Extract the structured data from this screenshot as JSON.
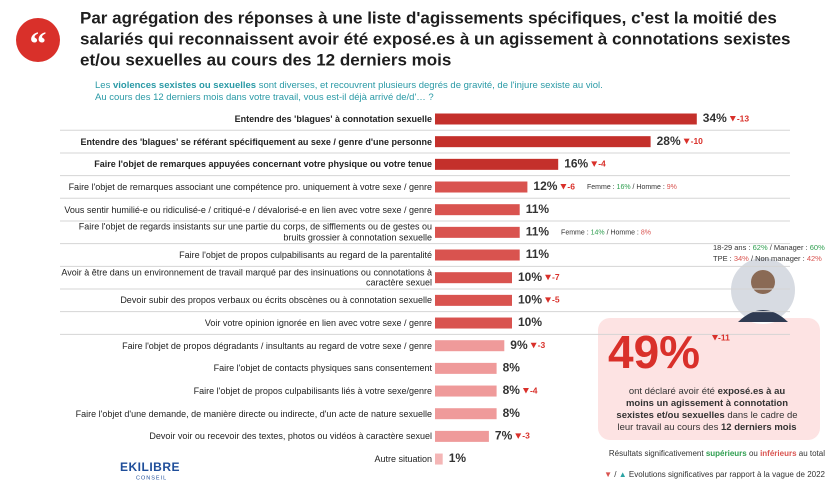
{
  "header": {
    "title_lines": [
      "Par agrégation des réponses à une liste d'agissements spécifiques, c'est la moitié des",
      "salariés qui reconnaissent avoir été exposé.es à un agissement à connotations sexistes",
      "et/ou sexuelles au cours des 12 derniers mois"
    ],
    "subtitle_lines": [
      [
        {
          "text": "Les "
        },
        {
          "text": "violences sexistes ou sexuelles",
          "bold": true
        },
        {
          "text": " sont diverses, et recouvrent plusieurs degrés de gravité, de l'injure sexiste au viol."
        }
      ],
      [
        {
          "text": "Au cours des 12 derniers mois dans votre travail, vous est-il déjà arrivé de/d'… ?"
        }
      ]
    ]
  },
  "chart_data": {
    "type": "bar",
    "orientation": "horizontal",
    "categories": [
      "Entendre des 'blagues' à connotation sexuelle",
      "Entendre des 'blagues' se référant spécifiquement au sexe / genre d'une personne",
      "Faire l'objet de remarques appuyées concernant votre physique ou votre tenue",
      "Faire l'objet de remarques associant une compétence pro. uniquement à votre sexe / genre",
      "Vous sentir humilié-e ou ridiculisé-e / critiqué-e / dévalorisé-e en lien avec votre sexe / genre",
      "Faire l'objet de regards insistants sur une partie du corps, de sifflements ou de gestes ou bruits grossier à connotation sexuelle",
      "Faire l'objet de propos culpabilisants au regard de la parentalité",
      "Avoir à être dans un environnement de travail marqué par des insinuations ou connotations à caractère sexuel",
      "Devoir subir des propos verbaux ou écrits obscènes ou à connotation sexuelle",
      "Voir votre opinion ignorée en lien avec votre sexe / genre",
      "Faire l'objet de propos dégradants / insultants au regard de votre sexe / genre",
      "Faire l'objet de contacts physiques sans consentement",
      "Faire l'objet de propos culpabilisants liés à votre sexe/genre",
      "Faire l'objet d'une demande, de manière directe ou indirecte, d'un acte de nature sexuelle",
      "Devoir voir ou recevoir des textes, photos ou vidéos à caractère sexuel",
      "Autre situation"
    ],
    "values": [
      34,
      28,
      16,
      12,
      11,
      11,
      11,
      10,
      10,
      10,
      9,
      8,
      8,
      8,
      7,
      1
    ],
    "value_labels": [
      "34%",
      "28%",
      "16%",
      "12%",
      "11%",
      "11%",
      "11%",
      "10%",
      "10%",
      "10%",
      "9%",
      "8%",
      "8%",
      "8%",
      "7%",
      "1%"
    ],
    "changes": [
      -13,
      -10,
      -4,
      -6,
      null,
      null,
      null,
      -7,
      -5,
      null,
      -3,
      null,
      -4,
      null,
      -3,
      null
    ],
    "colors": [
      "#c4302b",
      "#c4302b",
      "#c4302b",
      "#d9534f",
      "#d9534f",
      "#d9534f",
      "#d9534f",
      "#d9534f",
      "#d9534f",
      "#d9534f",
      "#ef9a9a",
      "#ef9a9a",
      "#ef9a9a",
      "#ef9a9a",
      "#ef9a9a",
      "#f4b6b6"
    ],
    "bold": [
      true,
      true,
      true,
      false,
      false,
      false,
      false,
      false,
      false,
      false,
      false,
      false,
      false,
      false,
      false,
      false
    ],
    "notes": [
      null,
      null,
      null,
      [
        {
          "text": "Femme : "
        },
        {
          "text": "16%",
          "color": "#2e9e4f"
        },
        {
          "text": " / Homme : "
        },
        {
          "text": "9%",
          "color": "#d9534f"
        }
      ],
      null,
      [
        {
          "text": "Femme : "
        },
        {
          "text": "14%",
          "color": "#2e9e4f"
        },
        {
          "text": " / Homme : "
        },
        {
          "text": "8%",
          "color": "#d9534f"
        }
      ],
      null,
      null,
      null,
      null,
      null,
      null,
      null,
      null,
      null,
      null
    ]
  },
  "callout": {
    "breakdown": [
      [
        {
          "text": "18-29 ans : "
        },
        {
          "text": "62%",
          "color": "#2e9e4f"
        },
        {
          "text": " / Manager : "
        },
        {
          "text": "60%",
          "color": "#2e9e4f"
        }
      ],
      [
        {
          "text": "TPE : "
        },
        {
          "text": "34%",
          "color": "#d9534f"
        },
        {
          "text": " / Non manager : "
        },
        {
          "text": "42%",
          "color": "#d9534f"
        }
      ]
    ],
    "value": 49,
    "value_label": "49%",
    "change": -11,
    "description": [
      [
        {
          "text": "ont déclaré avoir été "
        },
        {
          "text": "exposé.es à au",
          "bold": true
        }
      ],
      [
        {
          "text": "moins un agissement à connotation",
          "bold": true
        }
      ],
      [
        {
          "text": "sexistes et/ou sexuelles",
          "bold": true
        },
        {
          "text": " dans le cadre de"
        }
      ],
      [
        {
          "text": "leur travail au cours des "
        },
        {
          "text": "12 derniers mois",
          "bold": true
        }
      ]
    ]
  },
  "footer": {
    "significance": [
      {
        "text": "Résultats significativement "
      },
      {
        "text": "supérieurs",
        "color": "#2e9e4f",
        "bold": true
      },
      {
        "text": " ou "
      },
      {
        "text": "inférieurs",
        "color": "#d9534f",
        "bold": true
      },
      {
        "text": " au total"
      }
    ],
    "evolution": [
      {
        "text": "▼",
        "color": "#d9534f"
      },
      {
        "text": " / "
      },
      {
        "text": "▲",
        "color": "#2ba3a3"
      },
      {
        "text": " Evolutions significatives par rapport à la vague de 2022"
      }
    ]
  },
  "logo": {
    "name": "EKILIBRE",
    "tagline": "CONSEIL"
  }
}
